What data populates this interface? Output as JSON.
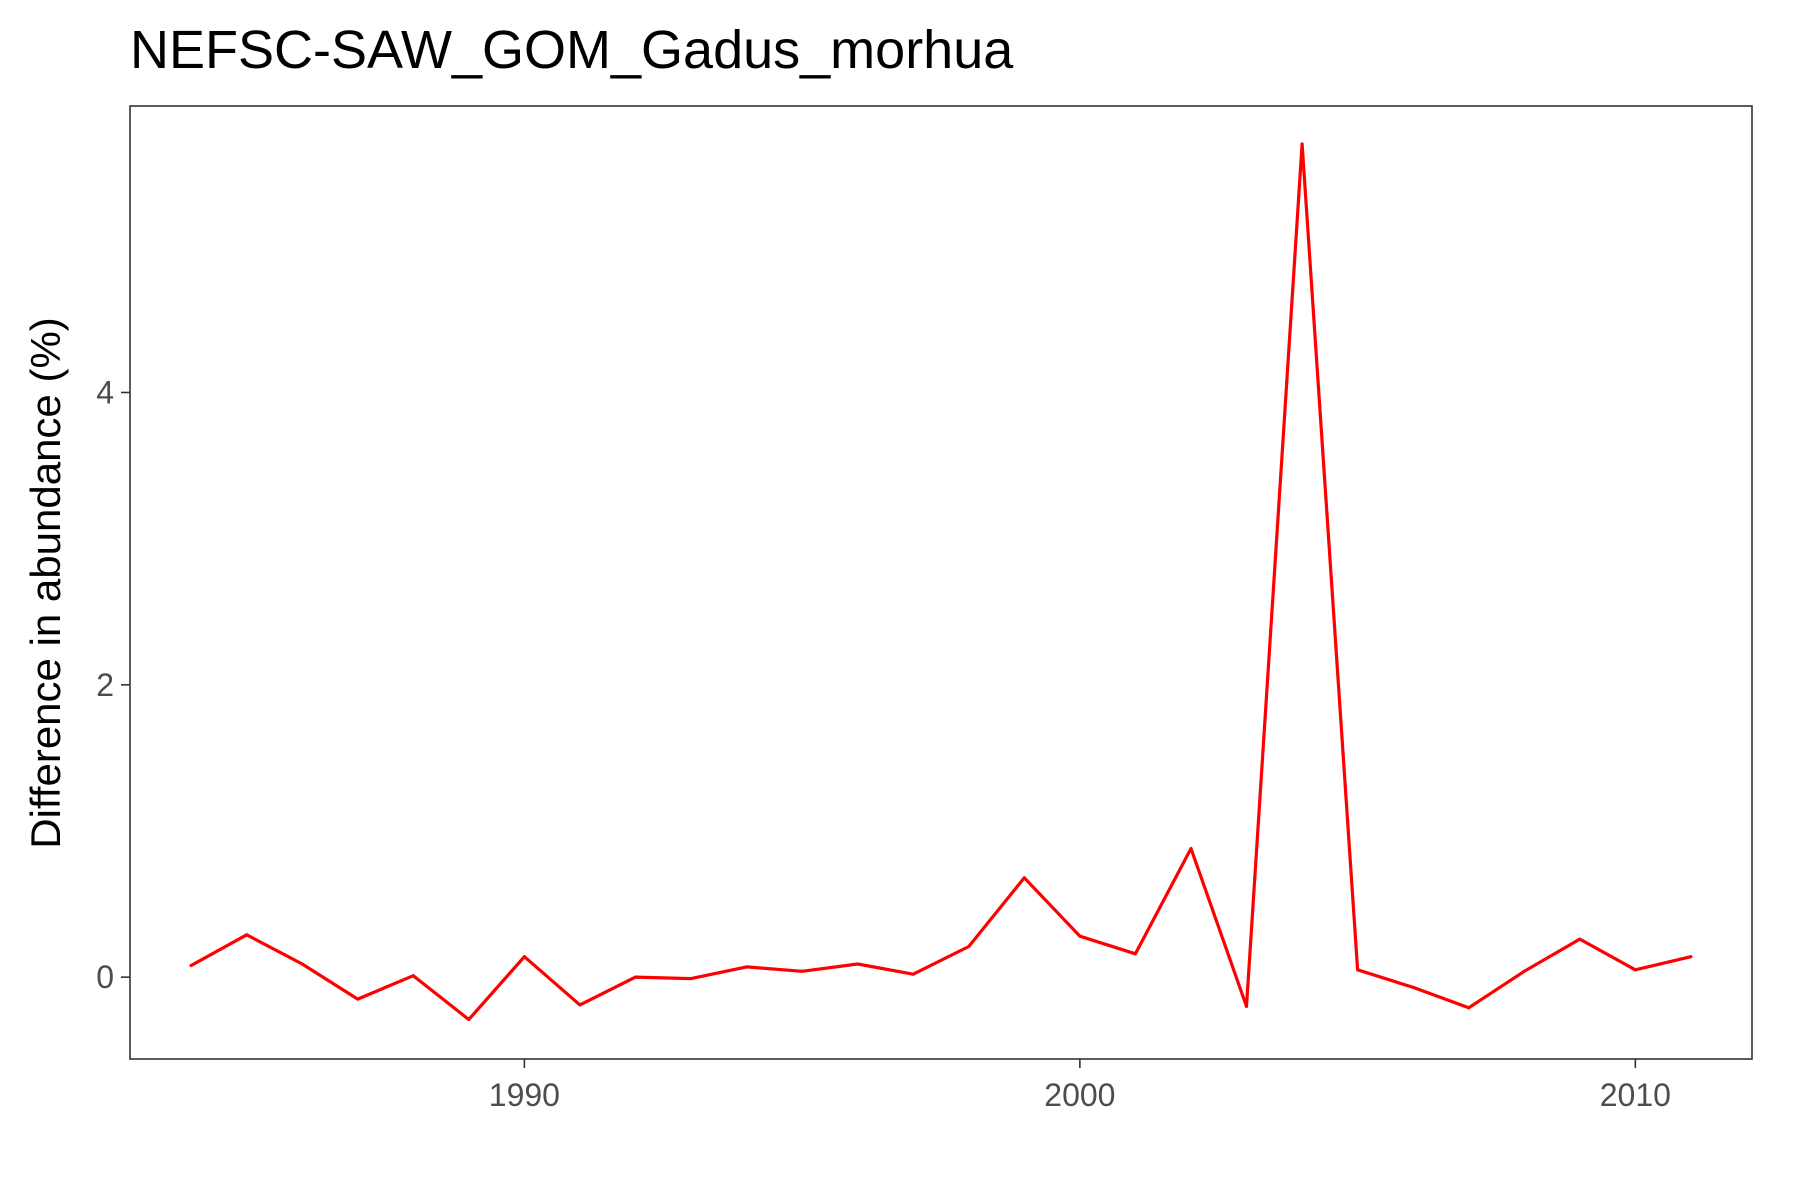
{
  "chart_data": {
    "type": "line",
    "title": "NEFSC-SAW_GOM_Gadus_morhua",
    "xlabel": "",
    "ylabel": "Difference in abundance (%)",
    "xlim": [
      1982.9,
      2012.1
    ],
    "ylim": [
      -0.56,
      5.96
    ],
    "x_ticks": [
      1990,
      2000,
      2010
    ],
    "y_ticks": [
      0,
      2,
      4
    ],
    "grid": false,
    "legend": "none",
    "line_color": "#ff0000",
    "series": [
      {
        "x": [
          1984,
          1985,
          1986,
          1987,
          1988,
          1989,
          1990,
          1991,
          1992,
          1993,
          1994,
          1995,
          1996,
          1997,
          1998,
          1999,
          2000,
          2001,
          2002,
          2003,
          2004,
          2005,
          2006,
          2007,
          2008,
          2009,
          2010,
          2011
        ],
        "y": [
          0.08,
          0.29,
          0.09,
          -0.15,
          0.01,
          -0.29,
          0.14,
          -0.19,
          0.0,
          -0.01,
          0.07,
          0.04,
          0.09,
          0.02,
          0.21,
          0.68,
          0.28,
          0.16,
          0.88,
          -0.2,
          5.7,
          0.05,
          -0.07,
          -0.21,
          0.04,
          0.26,
          0.05,
          0.14
        ]
      }
    ]
  }
}
